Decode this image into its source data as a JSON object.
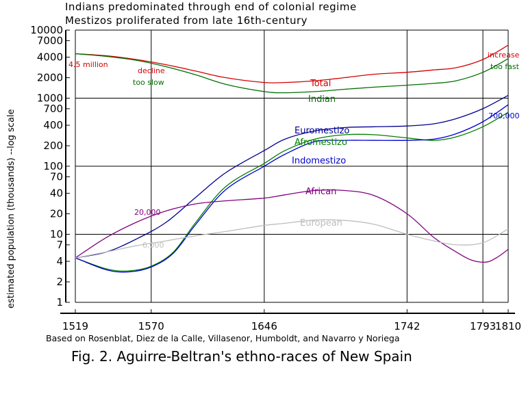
{
  "chart_data": {
    "type": "line",
    "title": "Indians predominated through end of colonial regime",
    "subtitle": "Mestizos  proliferated from late 16th-century",
    "xlabel": "",
    "ylabel": "estimated population (thousands) --log scale",
    "source": "Based on Rosenblat, Diez de la Calle, Villasenor, Humboldt, and Navarro y Noriega",
    "caption": "Fig. 2. Aguirre-Beltran's ethno-races of New Spain",
    "x_ticks": [
      1519,
      1570,
      1646,
      1742,
      1793,
      1810
    ],
    "xlim": [
      1519,
      1810
    ],
    "y_scale": "log",
    "ylim": [
      1,
      10000
    ],
    "y_ticks": [
      1,
      2,
      4,
      7,
      10,
      20,
      40,
      70,
      100,
      200,
      400,
      700,
      1000,
      2000,
      4000,
      7000,
      10000
    ],
    "y_tick_labels": [
      "1",
      "2",
      "4",
      "7",
      "10",
      "20",
      "40",
      "70",
      "100",
      "200",
      "400",
      "700",
      "1000",
      "2000",
      "4000",
      "7000",
      "10000"
    ],
    "grid": true,
    "series": [
      {
        "name": "Total",
        "color": "#d40000",
        "x": [
          1519,
          1540,
          1560,
          1580,
          1600,
          1620,
          1646,
          1660,
          1680,
          1700,
          1720,
          1742,
          1760,
          1775,
          1793,
          1810
        ],
        "y": [
          4500,
          4200,
          3700,
          3100,
          2500,
          2000,
          1700,
          1700,
          1800,
          2000,
          2250,
          2400,
          2600,
          2800,
          3700,
          6000
        ]
      },
      {
        "name": "Indian",
        "color": "#007000",
        "x": [
          1519,
          1540,
          1560,
          1580,
          1600,
          1620,
          1646,
          1660,
          1680,
          1700,
          1720,
          1742,
          1760,
          1775,
          1793,
          1810
        ],
        "y": [
          4500,
          4100,
          3600,
          2900,
          2200,
          1600,
          1250,
          1200,
          1250,
          1350,
          1450,
          1550,
          1650,
          1800,
          2400,
          3800
        ]
      },
      {
        "name": "Euromestizo",
        "color": "#000090",
        "x": [
          1519,
          1540,
          1560,
          1580,
          1600,
          1620,
          1646,
          1660,
          1680,
          1700,
          1720,
          1742,
          1760,
          1775,
          1793,
          1810
        ],
        "y": [
          4.5,
          5.5,
          8.5,
          15,
          35,
          80,
          170,
          250,
          330,
          370,
          380,
          390,
          420,
          500,
          700,
          1100
        ]
      },
      {
        "name": "Afromestizo",
        "color": "#008000",
        "x": [
          1519,
          1540,
          1555,
          1570,
          1585,
          1600,
          1620,
          1646,
          1660,
          1680,
          1700,
          1720,
          1742,
          1760,
          1775,
          1793,
          1810
        ],
        "y": [
          4.5,
          3.1,
          2.9,
          3.4,
          5.5,
          15,
          50,
          110,
          170,
          250,
          290,
          290,
          260,
          240,
          270,
          380,
          620
        ]
      },
      {
        "name": "Indomestizo",
        "color": "#0000d0",
        "x": [
          1519,
          1540,
          1555,
          1570,
          1585,
          1600,
          1620,
          1646,
          1660,
          1680,
          1700,
          1720,
          1742,
          1760,
          1775,
          1793,
          1810
        ],
        "y": [
          4.5,
          3.0,
          2.8,
          3.3,
          5.3,
          14,
          45,
          100,
          150,
          230,
          240,
          240,
          240,
          250,
          300,
          450,
          800
        ]
      },
      {
        "name": "African",
        "color": "#800080",
        "x": [
          1519,
          1540,
          1560,
          1580,
          1600,
          1620,
          1646,
          1660,
          1680,
          1700,
          1720,
          1742,
          1760,
          1775,
          1785,
          1795,
          1802,
          1810
        ],
        "y": [
          4.5,
          9,
          15,
          22,
          28,
          31,
          34,
          38,
          44,
          44,
          37,
          20,
          9,
          5.5,
          4.2,
          3.9,
          4.5,
          6
        ]
      },
      {
        "name": "European",
        "color": "#bdbdbd",
        "x": [
          1519,
          1540,
          1560,
          1580,
          1600,
          1620,
          1646,
          1660,
          1680,
          1700,
          1720,
          1742,
          1760,
          1775,
          1793,
          1810
        ],
        "y": [
          4.5,
          5.5,
          6.8,
          8,
          9.5,
          11,
          13.5,
          14.5,
          16.2,
          16,
          14,
          10,
          8,
          7,
          7.5,
          12
        ]
      }
    ],
    "annotations": [
      {
        "text": "4.5 million",
        "color": "#d40000"
      },
      {
        "text": "decline",
        "color": "#d40000"
      },
      {
        "text": "too slow",
        "color": "#007000"
      },
      {
        "text": "increase",
        "color": "#d40000"
      },
      {
        "text": "too fast",
        "color": "#007000"
      },
      {
        "text": "700,000",
        "color": "#0000d0"
      },
      {
        "text": "20,000",
        "color": "#800080"
      },
      {
        "text": "6,000",
        "color": "#bdbdbd"
      }
    ]
  }
}
